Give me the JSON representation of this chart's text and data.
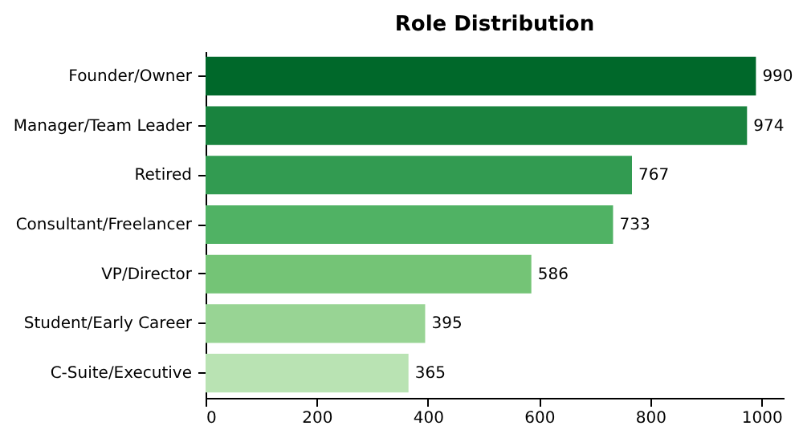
{
  "chart_data": {
    "type": "bar",
    "orientation": "horizontal",
    "title": "Role Distribution",
    "categories": [
      "Founder/Owner",
      "Manager/Team Leader",
      "Retired",
      "Consultant/Freelancer",
      "VP/Director",
      "Student/Early Career",
      "C-Suite/Executive"
    ],
    "values": [
      990,
      974,
      767,
      733,
      586,
      395,
      365
    ],
    "colors": [
      "#00682a",
      "#19833e",
      "#329b51",
      "#50b264",
      "#74c476",
      "#98d494",
      "#b9e3b3"
    ],
    "xlim": [
      0,
      1040
    ],
    "xticks": [
      0,
      200,
      400,
      600,
      800,
      1000
    ],
    "data_labels": true,
    "grid": false
  }
}
